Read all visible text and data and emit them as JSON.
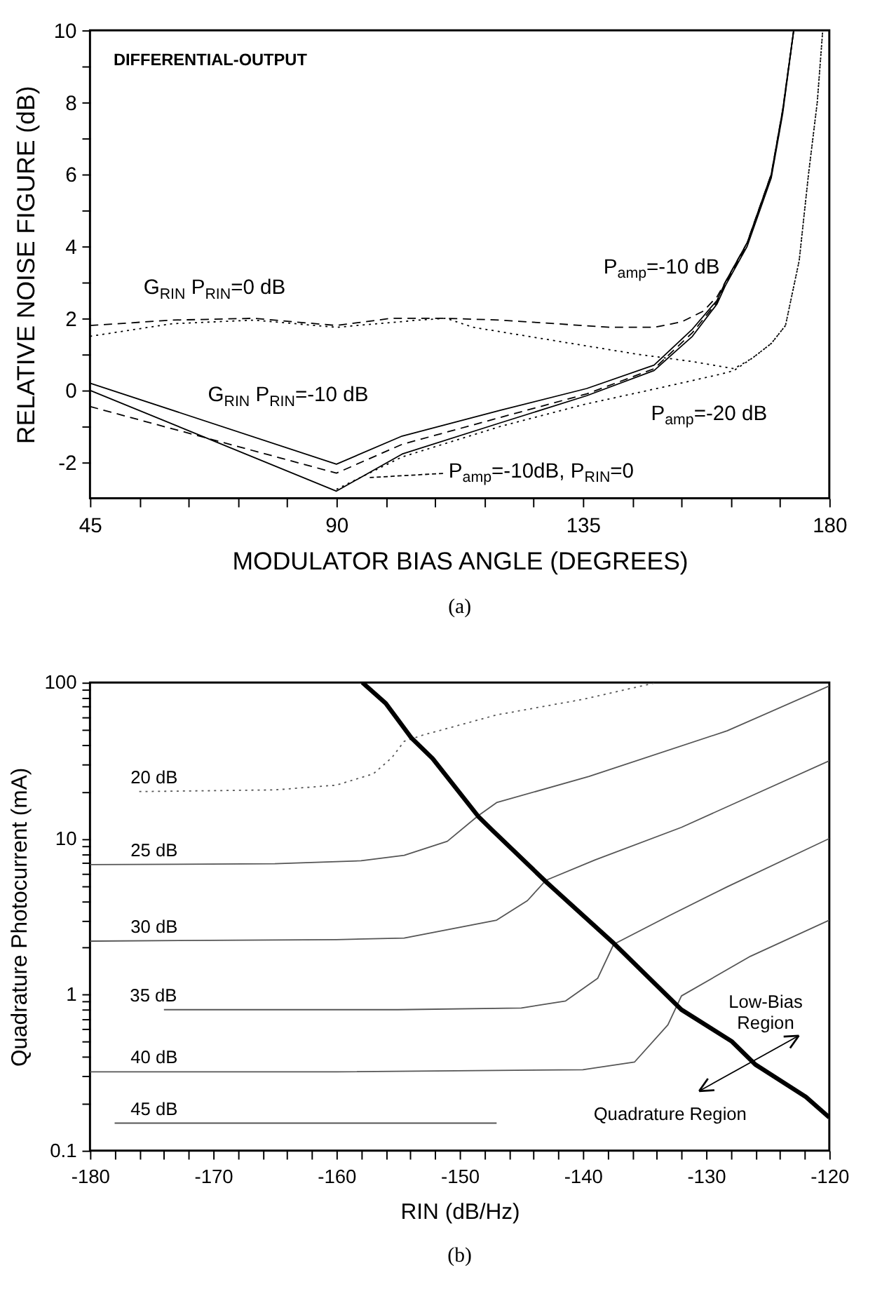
{
  "chart_data": [
    {
      "type": "line",
      "title": "(a)",
      "xlabel": "MODULATOR BIAS ANGLE (DEGREES)",
      "ylabel": "RELATIVE NOISE FIGURE (dB)",
      "xlim": [
        45,
        180
      ],
      "ylim": [
        -3,
        10
      ],
      "xticks": [
        45,
        {
          "value": 54,
          "label": null
        },
        {
          "value": 63,
          "label": null
        },
        {
          "value": 72,
          "label": null
        },
        {
          "value": 81,
          "label": null
        },
        90,
        {
          "value": 99,
          "label": null
        },
        {
          "value": 108,
          "label": null
        },
        {
          "value": 117,
          "label": null
        },
        {
          "value": 126,
          "label": null
        },
        135,
        {
          "value": 144,
          "label": null
        },
        {
          "value": 153,
          "label": null
        },
        {
          "value": 162,
          "label": null
        },
        {
          "value": 171,
          "label": null
        },
        180
      ],
      "yticks": [
        -2,
        {
          "value": -1,
          "label": null
        },
        0,
        {
          "value": 1,
          "label": null
        },
        2,
        {
          "value": 3,
          "label": null
        },
        4,
        {
          "value": 5,
          "label": null
        },
        6,
        {
          "value": 7,
          "label": null
        },
        8,
        {
          "value": 9,
          "label": null
        },
        10
      ],
      "series": [
        {
          "color": "#000000",
          "line_style": "dashed",
          "x": [
            45,
            60,
            75,
            90,
            100,
            110,
            120,
            130,
            140,
            148,
            153,
            157,
            159.5,
            161,
            165,
            169.4,
            171.5,
            173.5
          ],
          "values": [
            1.8,
            1.95,
            2.0,
            1.8,
            2.0,
            2.0,
            1.95,
            1.85,
            1.75,
            1.75,
            1.9,
            2.2,
            2.6,
            3.0,
            4.1,
            6.0,
            7.8,
            10
          ]
        },
        {
          "color": "#000000",
          "line_style": "dotted",
          "x": [
            45,
            60,
            75,
            90,
            105,
            110,
            115,
            125,
            135,
            145,
            155,
            162.6,
            166,
            169.4,
            172,
            174.5,
            176.2,
            177.8,
            178.8
          ],
          "values": [
            1.5,
            1.85,
            1.95,
            1.75,
            1.95,
            2.0,
            1.75,
            1.5,
            1.25,
            1.0,
            0.8,
            0.6,
            0.9,
            1.3,
            1.8,
            3.6,
            6.0,
            8.0,
            10
          ]
        },
        {
          "color": "#000000",
          "line_style": "solid",
          "x": [
            45,
            90,
            102,
            120,
            135.7,
            148,
            155,
            159.5,
            161,
            165,
            169.4,
            171.5,
            173.5
          ],
          "values": [
            0.2,
            -2.05,
            -1.27,
            -0.55,
            0.05,
            0.7,
            1.7,
            2.5,
            3.0,
            4.1,
            6.0,
            7.8,
            10
          ]
        },
        {
          "color": "#000000",
          "line_style": "dashed",
          "x": [
            45,
            90,
            102,
            120,
            135.7,
            148,
            155,
            159.5,
            161,
            165,
            169.4,
            171.5,
            173.5
          ],
          "values": [
            -0.45,
            -2.3,
            -1.5,
            -0.75,
            -0.1,
            0.6,
            1.6,
            2.45,
            2.95,
            4.05,
            5.95,
            7.75,
            10
          ]
        },
        {
          "color": "#000000",
          "line_style": "solid",
          "x": [
            45,
            90,
            102,
            120,
            135.7,
            148,
            155,
            159.5,
            161,
            165,
            169.4,
            171.5,
            173.5
          ],
          "values": [
            0.0,
            -2.8,
            -1.77,
            -0.9,
            -0.15,
            0.55,
            1.5,
            2.4,
            2.9,
            4.0,
            5.9,
            7.7,
            10
          ]
        },
        {
          "color": "#000000",
          "line_style": "dotted",
          "x": [
            90,
            102,
            120,
            135,
            150,
            160.2,
            162.6,
            166,
            169.4,
            172,
            174.5,
            176.2,
            177.8,
            178.8
          ],
          "values": [
            -2.75,
            -1.85,
            -1.0,
            -0.4,
            0.1,
            0.45,
            0.55,
            0.9,
            1.3,
            1.8,
            3.6,
            6.0,
            8.0,
            10
          ]
        }
      ],
      "annotations": [
        "DIFFERENTIAL-OUTPUT",
        {
          "text": "G$_{RIN}$ P$_{RIN}$=0 dB",
          "x": 59.4,
          "y": 1.94
        },
        {
          "text": "G$_{RIN}$ P$_{RIN}$=-10 dB",
          "x": 82.7,
          "y": -1.69
        },
        {
          "text": "P$_{amp}$=-10 dB",
          "x": 159.5,
          "y": 2.6
        },
        {
          "text": "P$_{amp}$=-20 dB",
          "x": 162.6,
          "y": 0.6
        },
        "P$_{amp}$=-10dB, P$_{RIN}$=0"
      ]
    },
    {
      "type": "line",
      "title": "(b)",
      "xlabel": "RIN (dB/Hz)",
      "ylabel": "Quadrature Photocurrent (mA)",
      "log": true,
      "xlim": [
        -180,
        -120
      ],
      "ylim": [
        0.1,
        100
      ],
      "xticks": [
        -180,
        {
          "value": -178,
          "label": null
        },
        {
          "value": -176,
          "label": null
        },
        {
          "value": -174,
          "label": null
        },
        {
          "value": -172,
          "label": null
        },
        -170,
        {
          "value": -168,
          "label": null
        },
        {
          "value": -166,
          "label": null
        },
        {
          "value": -164,
          "label": null
        },
        {
          "value": -162,
          "label": null
        },
        -160,
        {
          "value": -158,
          "label": null
        },
        {
          "value": -156,
          "label": null
        },
        {
          "value": -154,
          "label": null
        },
        {
          "value": -152,
          "label": null
        },
        -150,
        {
          "value": -148,
          "label": null
        },
        {
          "value": -146,
          "label": null
        },
        {
          "value": -144,
          "label": null
        },
        {
          "value": -142,
          "label": null
        },
        -140,
        {
          "value": -138,
          "label": null
        },
        {
          "value": -136,
          "label": null
        },
        {
          "value": -134,
          "label": null
        },
        {
          "value": -132,
          "label": null
        },
        -130,
        {
          "value": -128,
          "label": null
        },
        {
          "value": -126,
          "label": null
        },
        {
          "value": -124,
          "label": null
        },
        {
          "value": -122,
          "label": null
        },
        -120
      ],
      "yticks": [
        0.1,
        {
          "value": 0.2,
          "label": null
        },
        {
          "value": 0.3,
          "label": null
        },
        {
          "value": 0.4,
          "label": null
        },
        {
          "value": 0.5,
          "label": null
        },
        {
          "value": 0.6,
          "label": null
        },
        {
          "value": 0.7,
          "label": null
        },
        {
          "value": 0.8,
          "label": null
        },
        {
          "value": 0.9,
          "label": null
        },
        1,
        {
          "value": 2,
          "label": null
        },
        {
          "value": 3,
          "label": null
        },
        {
          "value": 4,
          "label": null
        },
        {
          "value": 5,
          "label": null
        },
        {
          "value": 6,
          "label": null
        },
        {
          "value": 7,
          "label": null
        },
        {
          "value": 8,
          "label": null
        },
        {
          "value": 9,
          "label": null
        },
        10,
        {
          "value": 20,
          "label": null
        },
        {
          "value": 30,
          "label": null
        },
        {
          "value": 40,
          "label": null
        },
        {
          "value": 50,
          "label": null
        },
        {
          "value": 60,
          "label": null
        },
        {
          "value": 70,
          "label": null
        },
        {
          "value": 80,
          "label": null
        },
        {
          "value": 90,
          "label": null
        },
        100
      ],
      "series": [
        {
          "color": "#555555",
          "line_style": "dotted",
          "x": [
            -176,
            -165,
            -160,
            -157,
            -155.5,
            -154.5,
            -153,
            -147,
            -140,
            -134
          ],
          "values": [
            20,
            20.5,
            22,
            26,
            33,
            42,
            46,
            62,
            78,
            100
          ]
        },
        {
          "color": "#555555",
          "line_style": "solid",
          "x": [
            -180,
            -165,
            -158,
            -154.5,
            -151,
            -148.5,
            -147,
            -139.5,
            -128.3,
            -120
          ],
          "values": [
            6.8,
            6.9,
            7.2,
            7.8,
            9.6,
            14,
            17,
            25,
            49,
            95
          ]
        },
        {
          "color": "#555555",
          "line_style": "solid",
          "x": [
            -180,
            -160,
            -154.5,
            -147,
            -144.5,
            -143,
            -139,
            -132,
            -120
          ],
          "values": [
            2.2,
            2.25,
            2.3,
            3.0,
            4.0,
            5.4,
            7.3,
            11.8,
            31.5
          ]
        },
        {
          "color": "#555555",
          "line_style": "solid",
          "x": [
            -174,
            -155,
            -145,
            -141.4,
            -138.8,
            -137.5,
            -133,
            -128.3,
            -120
          ],
          "values": [
            0.8,
            0.8,
            0.82,
            0.91,
            1.27,
            2.1,
            3.2,
            4.9,
            10
          ]
        },
        {
          "color": "#555555",
          "line_style": "solid",
          "x": [
            -180,
            -160,
            -140,
            -135.8,
            -133.1,
            -132,
            -126.4,
            -120
          ],
          "values": [
            0.32,
            0.32,
            0.33,
            0.37,
            0.64,
            0.98,
            1.76,
            3.0
          ]
        },
        {
          "color": "#555555",
          "line_style": "solid",
          "x": [
            -178,
            -147
          ],
          "values": [
            0.15,
            0.15
          ]
        },
        {
          "color": "#000000",
          "line_style": "solid",
          "x": [
            -157.9,
            -156,
            -153.9,
            -152.2,
            -148.5,
            -147.4,
            -142.9,
            -137.6,
            -132,
            -127.9,
            -126,
            -121.9,
            -120
          ],
          "values": [
            100,
            73.6,
            44,
            32.6,
            13.9,
            11.4,
            5.2,
            2.17,
            0.8,
            0.5,
            0.356,
            0.221,
            0.163
          ]
        }
      ],
      "annotations": [
        {
          "text": "20 dB",
          "x": -174.8,
          "y": 20
        },
        {
          "text": "25 dB",
          "x": -174.8,
          "y": 6.8
        },
        {
          "text": "30 dB",
          "x": -174.8,
          "y": 2.2
        },
        {
          "text": "35 dB",
          "x": -173.5,
          "y": 0.8
        },
        {
          "text": "40 dB",
          "x": -174.8,
          "y": 0.32
        },
        {
          "text": "45 dB",
          "x": -174.8,
          "y": 0.15
        },
        "Low-Bias Region",
        "Quadrature Region"
      ]
    }
  ]
}
